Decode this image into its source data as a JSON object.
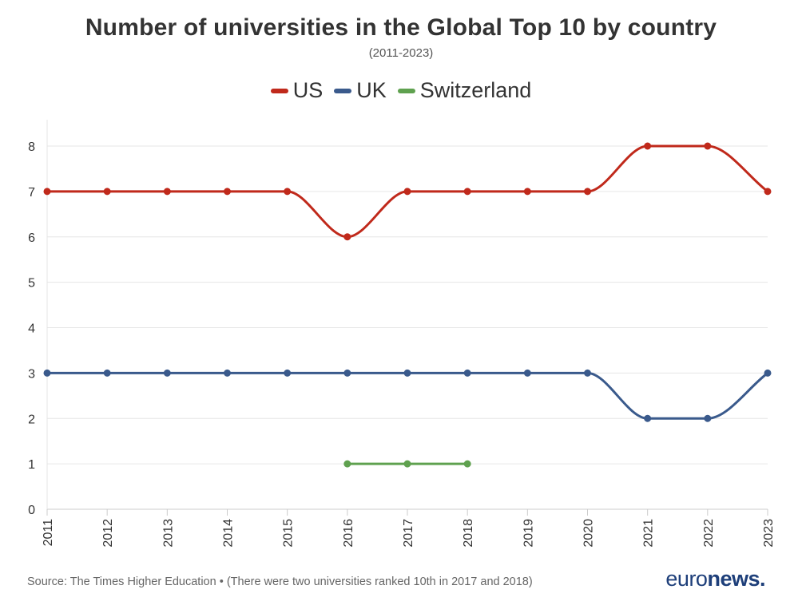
{
  "header": {
    "title": "Number of universities in the Global Top 10 by country",
    "subtitle": "(2011-2023)"
  },
  "footer": {
    "source": "Source: The Times Higher Education • (There were two universities ranked 10th in 2017 and 2018)",
    "logo_part1": "euro",
    "logo_part2": "news",
    "logo_dot": "."
  },
  "chart_data": {
    "type": "line",
    "title": "Number of universities in the Global Top 10 by country",
    "subtitle": "(2011-2023)",
    "x": [
      "2011",
      "2012",
      "2013",
      "2014",
      "2015",
      "2016",
      "2017",
      "2018",
      "2019",
      "2020",
      "2021",
      "2022",
      "2023"
    ],
    "ylim": [
      0,
      8
    ],
    "yticks": [
      0,
      1,
      2,
      3,
      4,
      5,
      6,
      7,
      8
    ],
    "grid": "horizontal",
    "legend_position": "top-center",
    "series": [
      {
        "name": "US",
        "color": "#c0291b",
        "values": [
          7,
          7,
          7,
          7,
          7,
          6,
          7,
          7,
          7,
          7,
          8,
          8,
          7
        ]
      },
      {
        "name": "UK",
        "color": "#3a5a8c",
        "values": [
          3,
          3,
          3,
          3,
          3,
          3,
          3,
          3,
          3,
          3,
          2,
          2,
          3
        ]
      },
      {
        "name": "Switzerland",
        "color": "#5fa14f",
        "values": [
          null,
          null,
          null,
          null,
          null,
          1,
          1,
          1,
          null,
          null,
          null,
          null,
          null
        ]
      }
    ]
  }
}
